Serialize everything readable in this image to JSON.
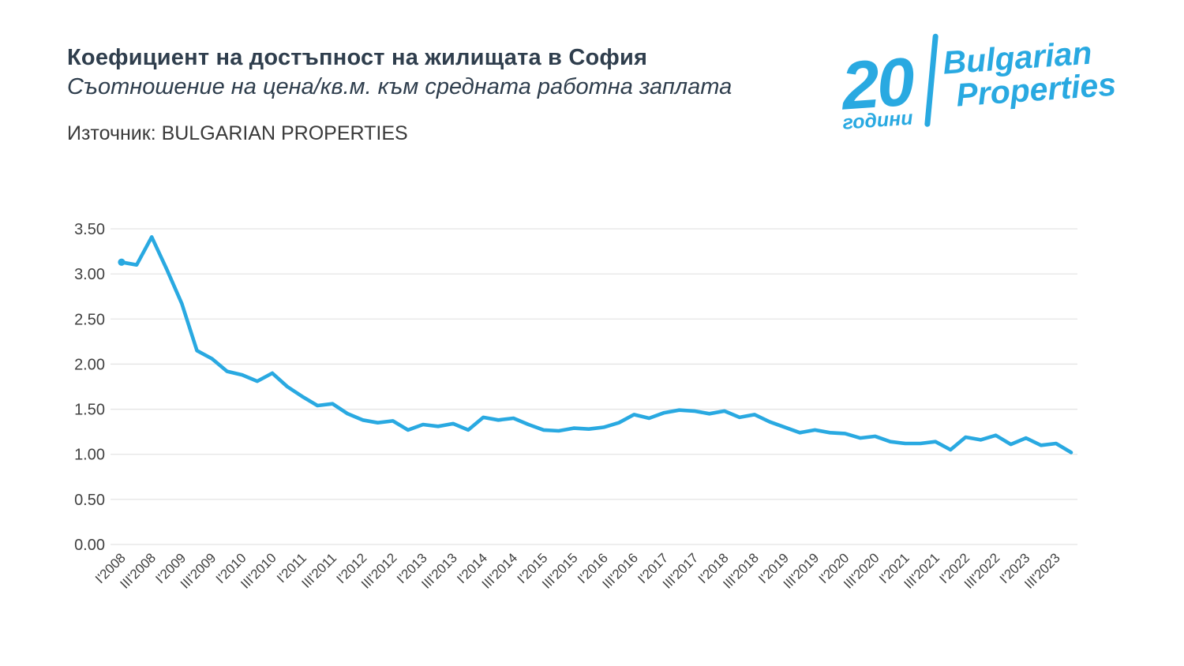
{
  "header": {
    "title": "Коефициент на достъпност на жилищата в София",
    "subtitle": "Съотношение на цена/кв.м. към средната работна заплата",
    "source": "Източник: BULGARIAN PROPERTIES"
  },
  "logo": {
    "anniversary_number": "20",
    "anniversary_label": "години",
    "brand_line1": "Bulgarian",
    "brand_line2": "Properties",
    "color": "#29A9E1"
  },
  "chart_data": {
    "type": "line",
    "title": "Коефициент на достъпност на жилищата в София",
    "subtitle": "Съотношение на цена/кв.м. към средната работна заплата",
    "xlabel": "",
    "ylabel": "",
    "ylim": [
      0,
      3.5
    ],
    "grid": "horizontal",
    "legend": "none",
    "line_color": "#29A9E1",
    "grid_color": "#E4E4E4",
    "axis_text_color": "#404040",
    "y_tick_labels": [
      "0.00",
      "0.50",
      "1.00",
      "1.50",
      "2.00",
      "2.50",
      "3.00",
      "3.50"
    ],
    "x_tick_labels": [
      "I'2008",
      "III'2008",
      "I'2009",
      "III'2009",
      "I'2010",
      "III'2010",
      "I'2011",
      "III'2011",
      "I'2012",
      "III'2012",
      "I'2013",
      "III'2013",
      "I'2014",
      "III'2014",
      "I'2015",
      "III'2015",
      "I'2016",
      "III'2016",
      "I'2017",
      "III'2017",
      "I'2018",
      "III'2018",
      "I'2019",
      "III'2019",
      "I'2020",
      "III'2020",
      "I'2021",
      "III'2021",
      "I'2022",
      "III'2022",
      "I'2023",
      "III'2023"
    ],
    "x": [
      "I'2008",
      "II'2008",
      "III'2008",
      "IV'2008",
      "I'2009",
      "II'2009",
      "III'2009",
      "IV'2009",
      "I'2010",
      "II'2010",
      "III'2010",
      "IV'2010",
      "I'2011",
      "II'2011",
      "III'2011",
      "IV'2011",
      "I'2012",
      "II'2012",
      "III'2012",
      "IV'2012",
      "I'2013",
      "II'2013",
      "III'2013",
      "IV'2013",
      "I'2014",
      "II'2014",
      "III'2014",
      "IV'2014",
      "I'2015",
      "II'2015",
      "III'2015",
      "IV'2015",
      "I'2016",
      "II'2016",
      "III'2016",
      "IV'2016",
      "I'2017",
      "II'2017",
      "III'2017",
      "IV'2017",
      "I'2018",
      "II'2018",
      "III'2018",
      "IV'2018",
      "I'2019",
      "II'2019",
      "III'2019",
      "IV'2019",
      "I'2020",
      "II'2020",
      "III'2020",
      "IV'2020",
      "I'2021",
      "II'2021",
      "III'2021",
      "IV'2021",
      "I'2022",
      "II'2022",
      "III'2022",
      "IV'2022",
      "I'2023",
      "II'2023",
      "III'2023",
      "IV'2023"
    ],
    "values": [
      3.13,
      3.1,
      3.41,
      3.05,
      2.67,
      2.15,
      2.06,
      1.92,
      1.88,
      1.81,
      1.9,
      1.75,
      1.64,
      1.54,
      1.56,
      1.45,
      1.38,
      1.35,
      1.37,
      1.27,
      1.33,
      1.31,
      1.34,
      1.27,
      1.41,
      1.38,
      1.4,
      1.33,
      1.27,
      1.26,
      1.29,
      1.28,
      1.3,
      1.35,
      1.44,
      1.4,
      1.46,
      1.49,
      1.48,
      1.45,
      1.48,
      1.41,
      1.44,
      1.36,
      1.3,
      1.24,
      1.27,
      1.24,
      1.23,
      1.18,
      1.2,
      1.14,
      1.12,
      1.12,
      1.14,
      1.05,
      1.19,
      1.16,
      1.21,
      1.11,
      1.18,
      1.1,
      1.12,
      1.02
    ]
  }
}
